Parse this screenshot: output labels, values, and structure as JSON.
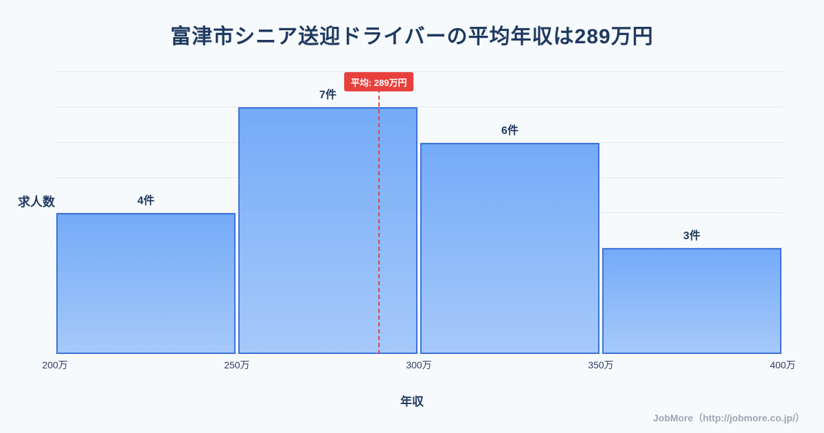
{
  "page": {
    "footer": "JobMore（http://jobmore.co.jp/）"
  },
  "chart_data": {
    "type": "bar",
    "title": "富津市シニア送迎ドライバーの平均年収は289万円",
    "xlabel": "年収",
    "ylabel": "求人数",
    "categories": [
      "200万-250万",
      "250万-300万",
      "300万-350万",
      "350万-400万"
    ],
    "values": [
      4,
      7,
      6,
      3
    ],
    "bar_labels": [
      "4件",
      "7件",
      "6件",
      "3件"
    ],
    "x_tick_labels": [
      "200万",
      "250万",
      "300万",
      "350万",
      "400万"
    ],
    "x_range_man": [
      200,
      400
    ],
    "ylim": [
      0,
      8
    ],
    "grid": true,
    "legend_position": "none",
    "average_line": {
      "value_man": 289,
      "label": "平均: 289万円"
    },
    "colors": {
      "background": "#f7fafc",
      "bar_gradient_top": "#74abf7",
      "bar_gradient_bottom": "#a6c9fa",
      "bar_border": "#3a72d8",
      "title_text": "#1f3a60",
      "gridline": "#dfe8f2",
      "average_accent": "#e8413d",
      "footer_text": "#9ca6b4"
    }
  }
}
